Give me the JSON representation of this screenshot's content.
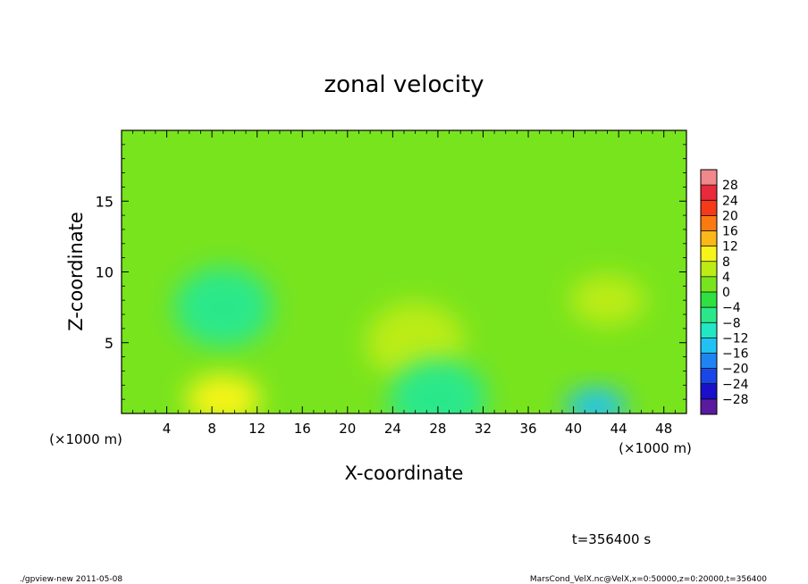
{
  "chart_data": {
    "type": "heatmap",
    "title": "zonal velocity",
    "xlabel": "X-coordinate",
    "ylabel": "Z-coordinate",
    "x_unit_label": "(×1000 m)",
    "y_unit_label": "(×1000 m)",
    "xlim": [
      0,
      50
    ],
    "ylim": [
      0,
      20
    ],
    "x_ticks": [
      "4",
      "8",
      "12",
      "16",
      "20",
      "24",
      "28",
      "32",
      "36",
      "40",
      "44",
      "48"
    ],
    "y_ticks": [
      "5",
      "10",
      "15"
    ],
    "x_tick_values": [
      4,
      8,
      12,
      16,
      20,
      24,
      28,
      32,
      36,
      40,
      44,
      48
    ],
    "y_tick_values": [
      5,
      10,
      15
    ],
    "colorbar": {
      "levels": [
        -32,
        -28,
        -24,
        -20,
        -16,
        -12,
        -8,
        -4,
        0,
        4,
        8,
        12,
        16,
        20,
        24,
        28,
        32
      ],
      "labels": [
        "28",
        "24",
        "20",
        "16",
        "12",
        "8",
        "4",
        "0",
        "−4",
        "−8",
        "−12",
        "−16",
        "−20",
        "−24",
        "−28"
      ],
      "label_values": [
        28,
        24,
        20,
        16,
        12,
        8,
        4,
        0,
        -4,
        -8,
        -12,
        -16,
        -20,
        -24,
        -28
      ],
      "colors": [
        "#5a1aa0",
        "#1a10c8",
        "#1a46e8",
        "#1e84f2",
        "#20c2f2",
        "#22e6c4",
        "#2ae88a",
        "#30e040",
        "#78e41e",
        "#bcec16",
        "#f6f418",
        "#fcb818",
        "#fa7a12",
        "#f43a18",
        "#e82a3a",
        "#f0888c"
      ]
    },
    "field_features": [
      {
        "kind": "background",
        "x": 25,
        "z": 10,
        "value": 0
      },
      {
        "kind": "cyan-pocket",
        "x": 9,
        "z": 7.5,
        "value": -8
      },
      {
        "kind": "blue-core",
        "x": 42,
        "z": 0.5,
        "value": -14
      },
      {
        "kind": "yellow-patch",
        "x": 9,
        "z": 1,
        "value": 10
      },
      {
        "kind": "yellow-patch",
        "x": 43,
        "z": 8,
        "value": 6
      },
      {
        "kind": "light-patch",
        "x": 26,
        "z": 5,
        "value": 4
      },
      {
        "kind": "cyan-patch",
        "x": 28,
        "z": 1,
        "value": -6
      }
    ]
  },
  "time_label": "t=356400 s",
  "footer": {
    "left": "./gpview-new   2011-05-08",
    "right": "MarsCond_VelX.nc@VelX,x=0:50000,z=0:20000,t=356400"
  }
}
